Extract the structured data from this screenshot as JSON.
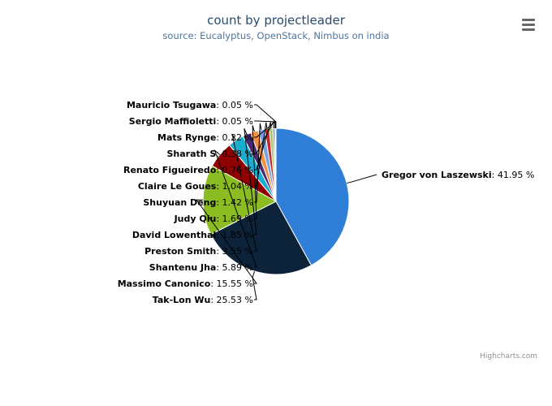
{
  "chart_data": {
    "type": "pie",
    "title": "count by projectleader",
    "subtitle": "source: Eucalyptus, OpenStack, Nimbus on india",
    "credits": "Highcharts.com",
    "value_suffix": " %",
    "slices": [
      {
        "name": "Gregor von Laszewski",
        "value": 41.95,
        "color": "#2f7ed8"
      },
      {
        "name": "Tak-Lon Wu",
        "value": 25.53,
        "color": "#0d233a"
      },
      {
        "name": "Massimo Canonico",
        "value": 15.55,
        "color": "#8bbc21"
      },
      {
        "name": "Shantenu Jha",
        "value": 5.89,
        "color": "#910000"
      },
      {
        "name": "Preston Smith",
        "value": 3.55,
        "color": "#1aadce"
      },
      {
        "name": "David Lowenthal",
        "value": 1.85,
        "color": "#492970"
      },
      {
        "name": "Judy Qiu",
        "value": 1.69,
        "color": "#f28f43"
      },
      {
        "name": "Shuyuan Deng",
        "value": 1.42,
        "color": "#77a1e5"
      },
      {
        "name": "Claire Le Goues",
        "value": 1.04,
        "color": "#c42525"
      },
      {
        "name": "Renato Figueiredo",
        "value": 0.76,
        "color": "#a6c96a"
      },
      {
        "name": "Sharath S",
        "value": 0.38,
        "color": "#2f7ed8"
      },
      {
        "name": "Mats Rynge",
        "value": 0.22,
        "color": "#0d233a"
      },
      {
        "name": "Sergio Maffioletti",
        "value": 0.05,
        "color": "#8bbc21"
      },
      {
        "name": "Mauricio Tsugawa",
        "value": 0.05,
        "color": "#910000"
      }
    ]
  }
}
